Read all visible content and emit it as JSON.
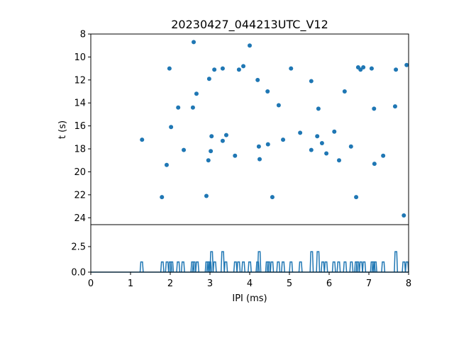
{
  "chart_data": [
    {
      "type": "scatter",
      "title": "20230427_044213UTC_V12",
      "xlabel": "",
      "ylabel": "t (s)",
      "xlim": [
        0,
        8
      ],
      "ylim": [
        24.6,
        8
      ],
      "y_inverted": true,
      "yticks": [
        "8",
        "10",
        "12",
        "14",
        "16",
        "18",
        "20",
        "22",
        "24"
      ],
      "color": "#1f77b4",
      "points": [
        [
          1.29,
          17.2
        ],
        [
          1.79,
          22.2
        ],
        [
          1.91,
          19.4
        ],
        [
          1.98,
          11.0
        ],
        [
          2.02,
          16.1
        ],
        [
          2.2,
          14.4
        ],
        [
          2.34,
          18.1
        ],
        [
          2.57,
          14.4
        ],
        [
          2.59,
          8.7
        ],
        [
          2.66,
          13.2
        ],
        [
          2.91,
          22.1
        ],
        [
          2.96,
          19.0
        ],
        [
          2.98,
          11.9
        ],
        [
          3.02,
          18.2
        ],
        [
          3.04,
          16.9
        ],
        [
          3.11,
          11.1
        ],
        [
          3.32,
          17.3
        ],
        [
          3.32,
          11.0
        ],
        [
          3.41,
          16.8
        ],
        [
          3.63,
          18.6
        ],
        [
          3.73,
          11.1
        ],
        [
          3.84,
          10.8
        ],
        [
          4.0,
          9.0
        ],
        [
          4.2,
          12.0
        ],
        [
          4.23,
          17.8
        ],
        [
          4.25,
          18.9
        ],
        [
          4.45,
          13.0
        ],
        [
          4.46,
          17.6
        ],
        [
          4.57,
          22.2
        ],
        [
          4.73,
          14.2
        ],
        [
          4.84,
          17.2
        ],
        [
          5.04,
          11.0
        ],
        [
          5.27,
          16.6
        ],
        [
          5.55,
          12.1
        ],
        [
          5.55,
          18.1
        ],
        [
          5.7,
          16.9
        ],
        [
          5.73,
          14.5
        ],
        [
          5.82,
          17.5
        ],
        [
          5.93,
          18.4
        ],
        [
          6.13,
          16.5
        ],
        [
          6.25,
          19.0
        ],
        [
          6.39,
          13.0
        ],
        [
          6.55,
          17.8
        ],
        [
          6.68,
          22.2
        ],
        [
          6.73,
          10.9
        ],
        [
          6.79,
          11.1
        ],
        [
          6.86,
          10.9
        ],
        [
          7.07,
          11.0
        ],
        [
          7.13,
          14.5
        ],
        [
          7.14,
          19.3
        ],
        [
          7.36,
          18.6
        ],
        [
          7.66,
          14.3
        ],
        [
          7.68,
          11.1
        ],
        [
          7.88,
          23.8
        ],
        [
          7.95,
          10.7
        ]
      ]
    },
    {
      "type": "line",
      "title": "",
      "xlabel": "IPI (ms)",
      "ylabel": "",
      "xlim": [
        0,
        8
      ],
      "ylim": [
        0,
        4.65
      ],
      "xticks": [
        "0",
        "1",
        "2",
        "3",
        "4",
        "5",
        "6",
        "7",
        "8"
      ],
      "yticks": [
        "0.0",
        "2.5"
      ],
      "color": "#1f77b4",
      "description_of_values": "histogram counts of IPI values from the scatter above"
    }
  ]
}
